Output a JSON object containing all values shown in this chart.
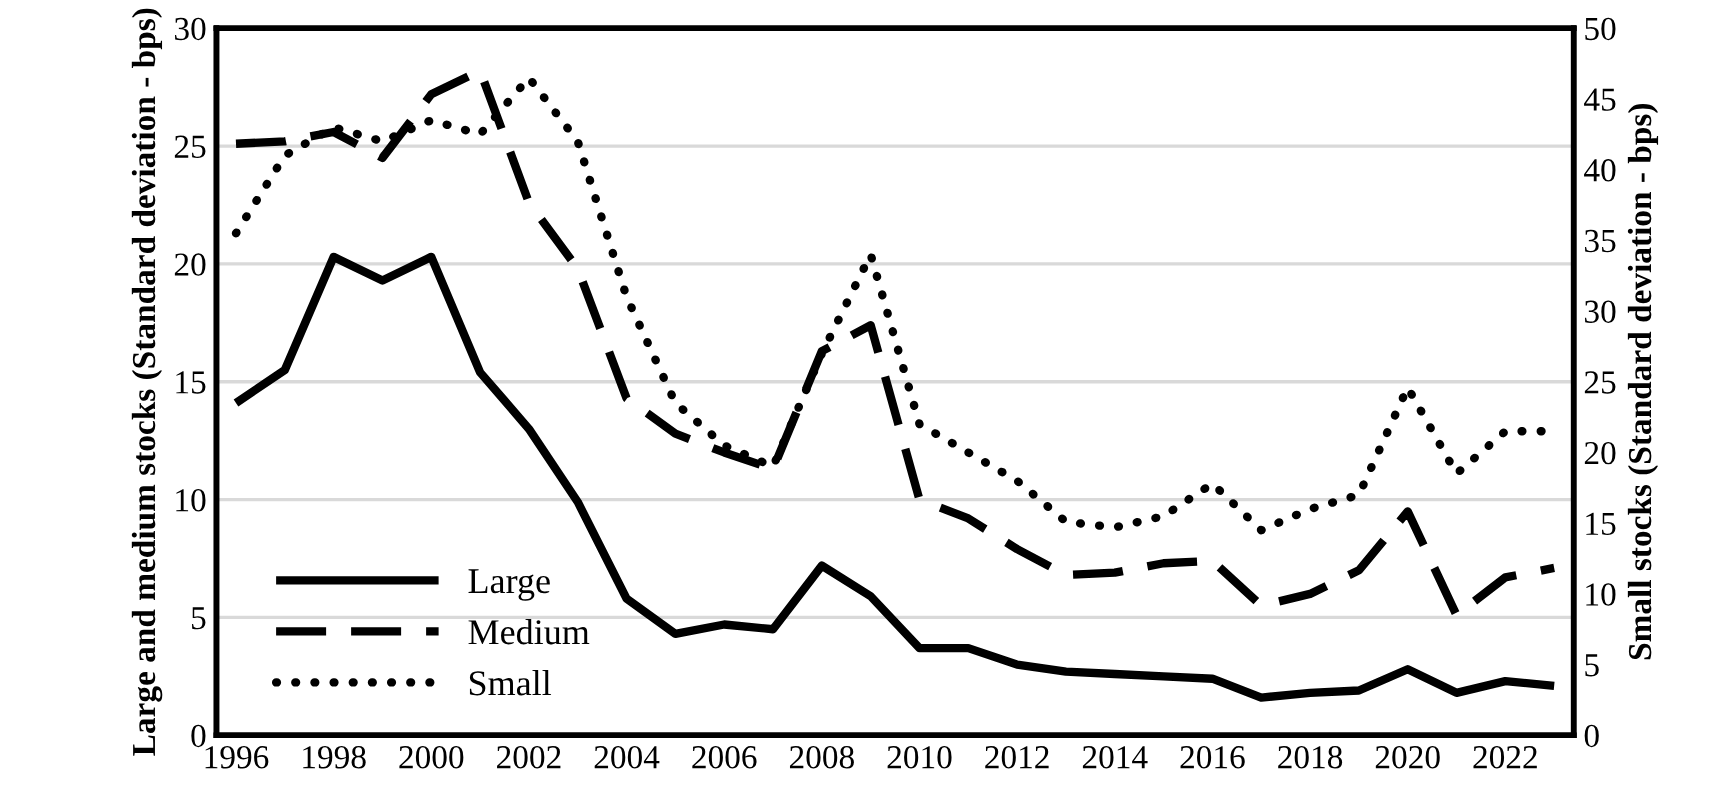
{
  "chart_data": {
    "type": "line",
    "ylabel": "Large and medium stocks (Standard deviation - bps)",
    "y2label": "Small stocks (Standard deviation - bps)",
    "x": [
      1996,
      1997,
      1998,
      1999,
      2000,
      2001,
      2002,
      2003,
      2004,
      2005,
      2006,
      2007,
      2008,
      2009,
      2010,
      2011,
      2012,
      2013,
      2014,
      2015,
      2016,
      2017,
      2018,
      2019,
      2020,
      2021,
      2022,
      2023
    ],
    "series": [
      {
        "name": "Large",
        "color": "#000000",
        "line_style": "solid",
        "values": [
          14.1,
          15.5,
          20.3,
          19.3,
          20.3,
          15.4,
          13.0,
          9.9,
          5.8,
          4.3,
          4.7,
          4.5,
          7.2,
          5.9,
          3.7,
          3.7,
          3.0,
          2.7,
          2.6,
          2.5,
          2.4,
          1.6,
          1.8,
          1.9,
          2.8,
          1.8,
          2.3,
          2.1
        ]
      },
      {
        "name": "Medium",
        "color": "#000000",
        "line_style": "dashed",
        "values": [
          25.1,
          25.2,
          25.6,
          24.5,
          27.2,
          28.2,
          22.6,
          19.8,
          14.3,
          12.8,
          12.0,
          11.3,
          16.3,
          17.4,
          10.0,
          9.2,
          7.9,
          6.8,
          6.9,
          7.3,
          7.4,
          5.5,
          6.0,
          7.0,
          9.5,
          5.1,
          6.7,
          7.1
        ]
      },
      {
        "name": "Small",
        "color": "#000000",
        "line_style": "dotted",
        "axis": "y2",
        "values": [
          35.5,
          41,
          43,
          42,
          43.5,
          42.5,
          46.5,
          42,
          31,
          23.5,
          20.5,
          19,
          27,
          34,
          22,
          20,
          18,
          15.1,
          14.7,
          15.5,
          17.8,
          14.5,
          16,
          17,
          24.6,
          18.5,
          21.5,
          21.5
        ]
      }
    ],
    "xlim": [
      1995.6,
      2023.4
    ],
    "xticks": [
      1996,
      1998,
      2000,
      2002,
      2004,
      2006,
      2008,
      2010,
      2012,
      2014,
      2016,
      2018,
      2020,
      2022
    ],
    "ylim": [
      0,
      30
    ],
    "yticks": [
      0,
      5,
      10,
      15,
      20,
      25,
      30
    ],
    "y2lim": [
      0,
      50
    ],
    "y2ticks": [
      0,
      5,
      10,
      15,
      20,
      25,
      30,
      35,
      40,
      45,
      50
    ],
    "grid": "y",
    "legend": "bottom left",
    "marker": "none"
  }
}
